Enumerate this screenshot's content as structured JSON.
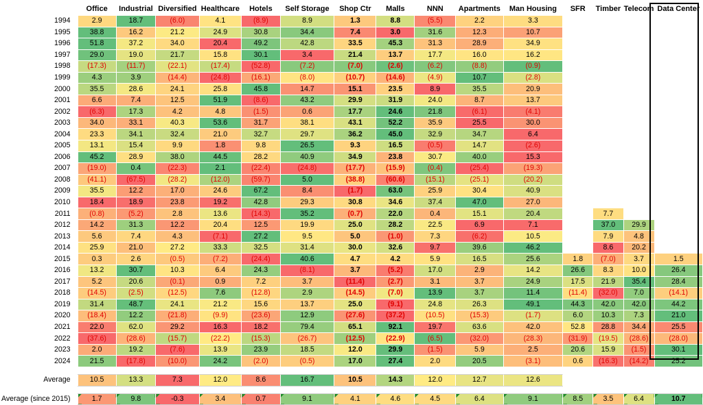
{
  "headers": [
    "Office",
    "Industrial",
    "Diversified",
    "Healthcare",
    "Hotels",
    "Self Storage",
    "Shop Ctr",
    "Malls",
    "NNN",
    "Apartments",
    "Man Housing",
    "SFR",
    "Timber",
    "Telecom",
    "Data Center"
  ],
  "bold_columns": [
    6,
    7
  ],
  "rows": [
    {
      "year": "1994",
      "values": [
        "2.9",
        "18.7",
        "(6.0)",
        "4.1",
        "(8.9)",
        "8.9",
        "1.3",
        "8.8",
        "(5.5)",
        "2.2",
        "3.3",
        "",
        "",
        "",
        ""
      ]
    },
    {
      "year": "1995",
      "values": [
        "38.8",
        "16.2",
        "21.2",
        "24.9",
        "30.8",
        "34.4",
        "7.4",
        "3.0",
        "31.6",
        "12.3",
        "10.7",
        "",
        "",
        "",
        ""
      ]
    },
    {
      "year": "1996",
      "values": [
        "51.8",
        "37.2",
        "34.0",
        "20.4",
        "49.2",
        "42.8",
        "33.5",
        "45.3",
        "31.3",
        "28.9",
        "34.9",
        "",
        "",
        "",
        ""
      ]
    },
    {
      "year": "1997",
      "values": [
        "29.0",
        "19.0",
        "21.7",
        "15.8",
        "30.1",
        "3.4",
        "21.4",
        "13.7",
        "17.7",
        "16.0",
        "16.2",
        "",
        "",
        "",
        ""
      ]
    },
    {
      "year": "1998",
      "values": [
        "(17.3)",
        "(11.7)",
        "(22.1)",
        "(17.4)",
        "(52.8)",
        "(7.2)",
        "(7.0)",
        "(2.6)",
        "(6.2)",
        "(8.8)",
        "(0.9)",
        "",
        "",
        "",
        ""
      ]
    },
    {
      "year": "1999",
      "values": [
        "4.3",
        "3.9",
        "(14.4)",
        "(24.8)",
        "(16.1)",
        "(8.0)",
        "(10.7)",
        "(14.6)",
        "(4.9)",
        "10.7",
        "(2.8)",
        "",
        "",
        "",
        ""
      ]
    },
    {
      "year": "2000",
      "values": [
        "35.5",
        "28.6",
        "24.1",
        "25.8",
        "45.8",
        "14.7",
        "15.1",
        "23.5",
        "8.9",
        "35.5",
        "20.9",
        "",
        "",
        "",
        ""
      ]
    },
    {
      "year": "2001",
      "values": [
        "6.6",
        "7.4",
        "12.5",
        "51.9",
        "(8.6)",
        "43.2",
        "29.9",
        "31.9",
        "24.0",
        "8.7",
        "13.7",
        "",
        "",
        "",
        ""
      ]
    },
    {
      "year": "2002",
      "values": [
        "(6.3)",
        "17.3",
        "4.2",
        "4.8",
        "(1.5)",
        "0.6",
        "17.7",
        "24.6",
        "21.8",
        "(6.1)",
        "(4.1)",
        "",
        "",
        "",
        ""
      ]
    },
    {
      "year": "2003",
      "values": [
        "34.0",
        "33.1",
        "40.3",
        "53.6",
        "31.7",
        "38.1",
        "43.1",
        "52.2",
        "35.9",
        "25.5",
        "30.0",
        "",
        "",
        "",
        ""
      ]
    },
    {
      "year": "2004",
      "values": [
        "23.3",
        "34.1",
        "32.4",
        "21.0",
        "32.7",
        "29.7",
        "36.2",
        "45.0",
        "32.9",
        "34.7",
        "6.4",
        "",
        "",
        "",
        ""
      ]
    },
    {
      "year": "2005",
      "values": [
        "13.1",
        "15.4",
        "9.9",
        "1.8",
        "9.8",
        "26.5",
        "9.3",
        "16.5",
        "(0.5)",
        "14.7",
        "(2.6)",
        "",
        "",
        "",
        ""
      ]
    },
    {
      "year": "2006",
      "values": [
        "45.2",
        "28.9",
        "38.0",
        "44.5",
        "28.2",
        "40.9",
        "34.9",
        "23.8",
        "30.7",
        "40.0",
        "15.3",
        "",
        "",
        "",
        ""
      ]
    },
    {
      "year": "2007",
      "values": [
        "(19.0)",
        "0.4",
        "(22.3)",
        "2.1",
        "(22.4)",
        "(24.8)",
        "(17.7)",
        "(15.9)",
        "(0.4)",
        "(25.4)",
        "(19.3)",
        "",
        "",
        "",
        ""
      ]
    },
    {
      "year": "2008",
      "values": [
        "(41.1)",
        "(67.5)",
        "(28.2)",
        "(12.0)",
        "(59.7)",
        "5.0",
        "(38.8)",
        "(60.6)",
        "(15.1)",
        "(25.1)",
        "(20.2)",
        "",
        "",
        "",
        ""
      ]
    },
    {
      "year": "2009",
      "values": [
        "35.5",
        "12.2",
        "17.0",
        "24.6",
        "67.2",
        "8.4",
        "(1.7)",
        "63.0",
        "25.9",
        "30.4",
        "40.9",
        "",
        "",
        "",
        ""
      ]
    },
    {
      "year": "2010",
      "values": [
        "18.4",
        "18.9",
        "23.8",
        "19.2",
        "42.8",
        "29.3",
        "30.8",
        "34.6",
        "37.4",
        "47.0",
        "27.0",
        "",
        "",
        "",
        ""
      ]
    },
    {
      "year": "2011",
      "values": [
        "(0.8)",
        "(5.2)",
        "2.8",
        "13.6",
        "(14.3)",
        "35.2",
        "(0.7)",
        "22.0",
        "0.4",
        "15.1",
        "20.4",
        "",
        "7.7",
        "",
        ""
      ]
    },
    {
      "year": "2012",
      "values": [
        "14.2",
        "31.3",
        "12.2",
        "20.4",
        "12.5",
        "19.9",
        "25.0",
        "28.2",
        "22.5",
        "6.9",
        "7.1",
        "",
        "37.0",
        "29.9",
        ""
      ]
    },
    {
      "year": "2013",
      "values": [
        "5.6",
        "7.4",
        "4.3",
        "(7.1)",
        "27.2",
        "9.5",
        "5.0",
        "(1.0)",
        "7.3",
        "(6.2)",
        "10.5",
        "",
        "7.9",
        "4.8",
        ""
      ]
    },
    {
      "year": "2014",
      "values": [
        "25.9",
        "21.0",
        "27.2",
        "33.3",
        "32.5",
        "31.4",
        "30.0",
        "32.6",
        "9.7",
        "39.6",
        "46.2",
        "",
        "8.6",
        "20.2",
        ""
      ]
    },
    {
      "year": "2015",
      "values": [
        "0.3",
        "2.6",
        "(0.5)",
        "(7.2)",
        "(24.4)",
        "40.6",
        "4.7",
        "4.2",
        "5.9",
        "16.5",
        "25.6",
        "1.8",
        "(7.0)",
        "3.7",
        "1.5"
      ]
    },
    {
      "year": "2016",
      "values": [
        "13.2",
        "30.7",
        "10.3",
        "6.4",
        "24.3",
        "(8.1)",
        "3.7",
        "(5.2)",
        "17.0",
        "2.9",
        "14.2",
        "26.6",
        "8.3",
        "10.0",
        "26.4"
      ]
    },
    {
      "year": "2017",
      "values": [
        "5.2",
        "20.6",
        "(0.1)",
        "0.9",
        "7.2",
        "3.7",
        "(11.4)",
        "(2.7)",
        "3.1",
        "3.7",
        "24.9",
        "17.5",
        "21.9",
        "35.4",
        "28.4"
      ]
    },
    {
      "year": "2018",
      "values": [
        "(14.5)",
        "(2.5)",
        "(12.5)",
        "7.6",
        "(12.8)",
        "2.9",
        "(14.5)",
        "(7.0)",
        "13.9",
        "3.7",
        "11.4",
        "(11.4)",
        "(32.0)",
        "7.0",
        "(14.1)"
      ]
    },
    {
      "year": "2019",
      "values": [
        "31.4",
        "48.7",
        "24.1",
        "21.2",
        "15.6",
        "13.7",
        "25.0",
        "(9.1)",
        "24.8",
        "26.3",
        "49.1",
        "44.3",
        "42.0",
        "42.0",
        "44.2"
      ]
    },
    {
      "year": "2020",
      "values": [
        "(18.4)",
        "12.2",
        "(21.8)",
        "(9.9)",
        "(23.6)",
        "12.9",
        "(27.6)",
        "(37.2)",
        "(10.5)",
        "(15.3)",
        "(1.7)",
        "6.0",
        "10.3",
        "7.3",
        "21.0"
      ]
    },
    {
      "year": "2021",
      "values": [
        "22.0",
        "62.0",
        "29.2",
        "16.3",
        "18.2",
        "79.4",
        "65.1",
        "92.1",
        "19.7",
        "63.6",
        "42.0",
        "52.8",
        "28.8",
        "34.4",
        "25.5"
      ]
    },
    {
      "year": "2022",
      "values": [
        "(37.6)",
        "(28.6)",
        "(15.7)",
        "(22.2)",
        "(15.3)",
        "(26.7)",
        "(12.5)",
        "(22.9)",
        "(6.5)",
        "(32.0)",
        "(28.3)",
        "(31.9)",
        "(19.5)",
        "(28.6)",
        "(28.0)"
      ]
    },
    {
      "year": "2023",
      "values": [
        "2.0",
        "19.2",
        "(7.6)",
        "13.9",
        "23.9",
        "18.5",
        "12.0",
        "29.9",
        "(1.5)",
        "5.9",
        "2.5",
        "20.6",
        "15.9",
        "(1.5)",
        "30.1"
      ]
    },
    {
      "year": "2024",
      "values": [
        "21.5",
        "(17.8)",
        "(10.0)",
        "24.2",
        "(2.0)",
        "(0.5)",
        "17.0",
        "27.4",
        "2.0",
        "20.5",
        "(3.1)",
        "0.6",
        "(16.3)",
        "(14.2)",
        "25.2"
      ]
    }
  ],
  "average": {
    "label": "Average",
    "values": [
      "10.5",
      "13.3",
      "7.3",
      "12.0",
      "8.6",
      "16.7",
      "10.5",
      "14.3",
      "12.0",
      "12.7",
      "12.6",
      "",
      "",
      "",
      ""
    ]
  },
  "average_2015": {
    "label": "Average (since 2015)",
    "values": [
      "1.7",
      "9.8",
      "-0.3",
      "3.4",
      "0.7",
      "9.1",
      "4.1",
      "4.6",
      "4.5",
      "6.4",
      "9.1",
      "8.5",
      "3.5",
      "6.4",
      "10.7"
    ]
  },
  "colors": {
    "negative_text": "#e00000",
    "scale_low": "#f8696b",
    "scale_mid": "#ffeb84",
    "scale_high": "#63be7b",
    "highlight_border": "#000000"
  }
}
